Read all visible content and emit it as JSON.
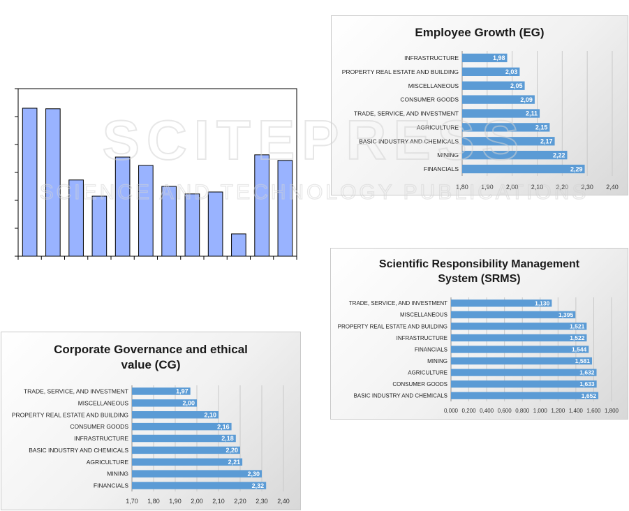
{
  "chart_data": [
    {
      "type": "bar",
      "orientation": "vertical",
      "title": "",
      "values": [
        5.3,
        5.28,
        2.73,
        2.15,
        3.55,
        3.25,
        2.5,
        2.23,
        2.3,
        0.8,
        3.63,
        3.43
      ],
      "ylim": [
        0,
        6
      ],
      "color": "#99b3ff",
      "grid": false,
      "legend": "none"
    },
    {
      "type": "bar",
      "orientation": "horizontal",
      "title": "Employee Growth (EG)",
      "categories": [
        "INFRASTRUCTURE",
        "PROPERTY REAL ESTATE AND BUILDING",
        "MISCELLANEOUS",
        "CONSUMER GOODS",
        "TRADE, SERVICE, AND INVESTMENT",
        "AGRICULTURE",
        "BASIC INDUSTRY AND CHEMICALS",
        "MINING",
        "FINANCIALS"
      ],
      "values": [
        1.98,
        2.03,
        2.05,
        2.09,
        2.11,
        2.15,
        2.17,
        2.22,
        2.29
      ],
      "value_labels": [
        "1,98",
        "2,03",
        "2,05",
        "2,09",
        "2,11",
        "2,15",
        "2,17",
        "2,22",
        "2,29"
      ],
      "xlim": [
        1.8,
        2.4
      ],
      "ticks": [
        1.8,
        1.9,
        2.0,
        2.1,
        2.2,
        2.3,
        2.4
      ],
      "tick_labels": [
        "1,80",
        "1,90",
        "2,00",
        "2,10",
        "2,20",
        "2,30",
        "2,40"
      ],
      "color": "#5b9bd5",
      "grid": true,
      "legend": "none"
    },
    {
      "type": "bar",
      "orientation": "horizontal",
      "title": "Scientific Responsibility Management System (SRMS)",
      "title_lines": [
        "Scientific Responsibility Management",
        "System (SRMS)"
      ],
      "categories": [
        "TRADE, SERVICE, AND INVESTMENT",
        "MISCELLANEOUS",
        "PROPERTY REAL ESTATE AND BUILDING",
        "INFRASTRUCTURE",
        "FINANCIALS",
        "MINING",
        "AGRICULTURE",
        "CONSUMER GOODS",
        "BASIC INDUSTRY AND CHEMICALS"
      ],
      "values": [
        1.13,
        1.395,
        1.521,
        1.522,
        1.544,
        1.581,
        1.632,
        1.633,
        1.652
      ],
      "value_labels": [
        "1,130",
        "1,395",
        "1,521",
        "1,522",
        "1,544",
        "1,581",
        "1,632",
        "1,633",
        "1,652"
      ],
      "xlim": [
        0,
        1.8
      ],
      "ticks": [
        0,
        0.2,
        0.4,
        0.6,
        0.8,
        1.0,
        1.2,
        1.4,
        1.6,
        1.8
      ],
      "tick_labels": [
        "0,000",
        "0,200",
        "0,400",
        "0,600",
        "0,800",
        "1,000",
        "1,200",
        "1,400",
        "1,600",
        "1,800"
      ],
      "color": "#5b9bd5",
      "grid": true,
      "legend": "none"
    },
    {
      "type": "bar",
      "orientation": "horizontal",
      "title": "Corporate Governance and ethical value (CG)",
      "title_lines": [
        "Corporate Governance and ethical",
        "value (CG)"
      ],
      "categories": [
        "TRADE, SERVICE, AND INVESTMENT",
        "MISCELLANEOUS",
        "PROPERTY REAL ESTATE AND BUILDING",
        "CONSUMER GOODS",
        "INFRASTRUCTURE",
        "BASIC INDUSTRY AND CHEMICALS",
        "AGRICULTURE",
        "MINING",
        "FINANCIALS"
      ],
      "values": [
        1.97,
        2.0,
        2.1,
        2.16,
        2.18,
        2.2,
        2.21,
        2.3,
        2.32
      ],
      "value_labels": [
        "1,97",
        "2,00",
        "2,10",
        "2,16",
        "2,18",
        "2,20",
        "2,21",
        "2,30",
        "2,32"
      ],
      "xlim": [
        1.7,
        2.4
      ],
      "ticks": [
        1.7,
        1.8,
        1.9,
        2.0,
        2.1,
        2.2,
        2.3,
        2.4
      ],
      "tick_labels": [
        "1,70",
        "1,80",
        "1,90",
        "2,00",
        "2,10",
        "2,20",
        "2,30",
        "2,40"
      ],
      "color": "#5b9bd5",
      "grid": true,
      "legend": "none"
    }
  ],
  "watermark": {
    "line1": "SCITEPRESS",
    "line2": "SCIENCE AND TECHNOLOGY PUBLICATIONS",
    "color": "#d9d9d9"
  }
}
